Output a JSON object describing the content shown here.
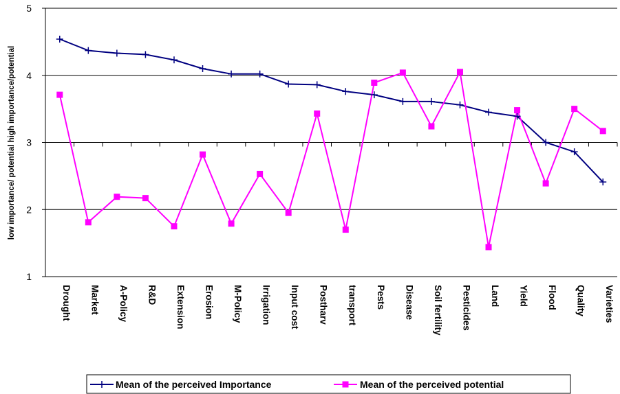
{
  "chart_data": {
    "type": "line",
    "ylabel": "low importance/ potential  high importance/potential",
    "ylim": [
      1,
      5
    ],
    "yticks": [
      1,
      2,
      3,
      4,
      5
    ],
    "grid": true,
    "legend_position": "bottom",
    "categories": [
      "Drought",
      "Market",
      "A-Policy",
      "R&D",
      "Extension",
      "Erosion",
      "M-Policy",
      "Irrigation",
      "Input cost",
      "Postharv",
      "transport",
      "Pests",
      "Disease",
      "Soil fertility",
      "Pesticides",
      "Land",
      "Yield",
      "Flood",
      "Quality",
      "Varieties"
    ],
    "series": [
      {
        "name": "Mean of the perceived Importance",
        "color": "#000080",
        "marker": "plus",
        "values": [
          4.54,
          4.37,
          4.33,
          4.31,
          4.23,
          4.1,
          4.02,
          4.02,
          3.87,
          3.86,
          3.76,
          3.71,
          3.61,
          3.61,
          3.56,
          3.45,
          3.39,
          3.0,
          2.86,
          2.41
        ]
      },
      {
        "name": "Mean of the perceived potential",
        "color": "#ff00ff",
        "marker": "square",
        "values": [
          3.71,
          1.81,
          2.19,
          2.17,
          1.75,
          2.82,
          1.79,
          2.53,
          1.95,
          3.43,
          1.7,
          3.89,
          4.04,
          3.24,
          4.05,
          1.44,
          3.48,
          2.39,
          3.5,
          3.17
        ]
      }
    ]
  }
}
